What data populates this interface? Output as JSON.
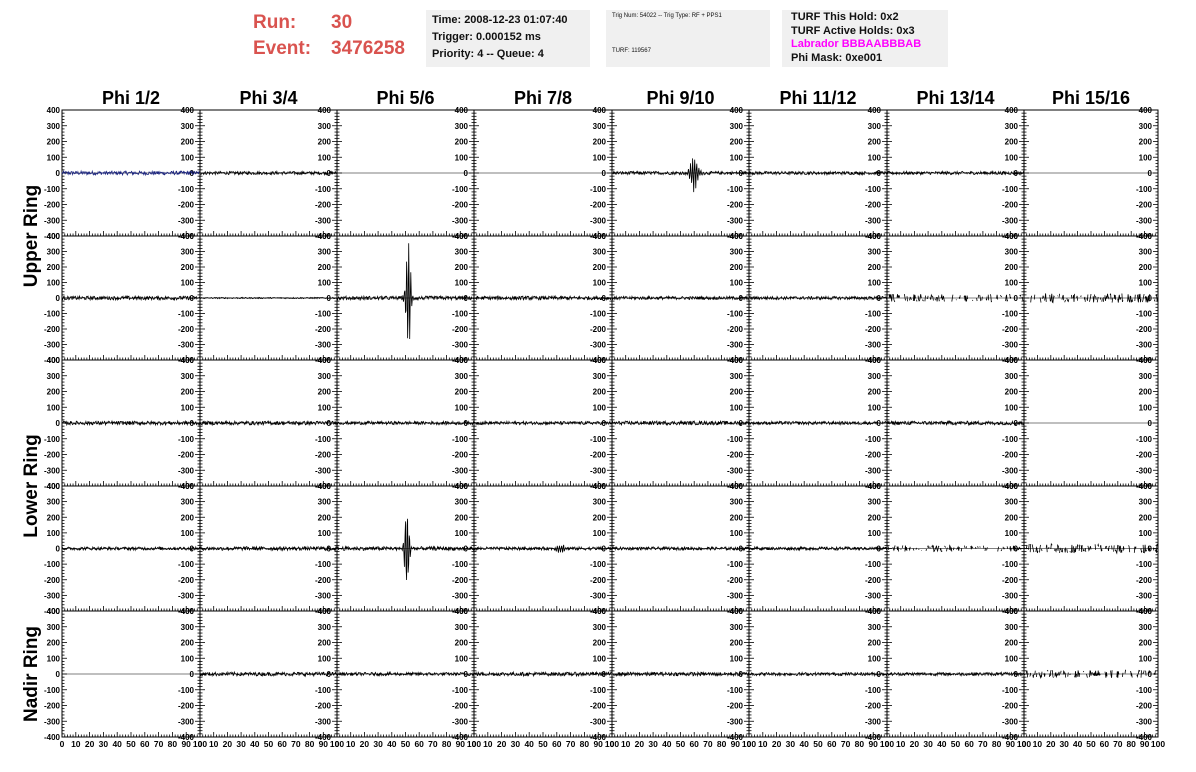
{
  "header": {
    "run_label": "Run:",
    "run_value": "30",
    "event_label": "Event:",
    "event_value": "3476258"
  },
  "info_time": {
    "time": "Time: 2008-12-23 01:07:40",
    "trigger": "Trigger: 0.000152 ms",
    "priority": "Priority: 4 -- Queue: 4"
  },
  "info_trig": {
    "trig_line": "Trig Num: 54022 -- Trig Type: RF + PPS1",
    "turf_line": "TURF: 119567"
  },
  "info_turf": {
    "hold": "TURF This Hold: 0x2",
    "active_holds": "TURF Active Holds: 0x3",
    "labrador": "Labrador BBBAABBBAB",
    "phi_mask": "Phi Mask: 0xe001"
  },
  "colors": {
    "header_red": "#d9534f",
    "magenta": "#ff00ff",
    "trace": "#000000",
    "trace_blue": "#1a237e",
    "panel_bg": "#f0f0f0"
  },
  "chart_data": {
    "type": "line",
    "columns": [
      "Phi 1/2",
      "Phi 3/4",
      "Phi 5/6",
      "Phi 7/8",
      "Phi 9/10",
      "Phi 11/12",
      "Phi 13/14",
      "Phi 15/16"
    ],
    "ring_labels": [
      "Upper Ring",
      "Lower Ring",
      "Nadir Ring"
    ],
    "ylim": [
      -400,
      400
    ],
    "xlim": [
      0,
      100
    ],
    "yticks": [
      "400",
      "300",
      "200",
      "100",
      "0",
      "-100",
      "-200",
      "-300",
      "-400"
    ],
    "xticks": [
      "0",
      "10",
      "20",
      "30",
      "40",
      "50",
      "60",
      "70",
      "80",
      "90",
      "100"
    ],
    "rows": [
      [
        {
          "kind": "noise",
          "amp": 12,
          "color": "blue"
        },
        {
          "kind": "noise",
          "amp": 10
        },
        {
          "kind": "flat"
        },
        {
          "kind": "flat"
        },
        {
          "kind": "pulse",
          "center": 60,
          "amp": 130,
          "noise": 10
        },
        {
          "kind": "noise",
          "amp": 10
        },
        {
          "kind": "noise",
          "amp": 10
        },
        {
          "kind": "flat"
        }
      ],
      [
        {
          "kind": "noise",
          "amp": 12
        },
        {
          "kind": "noise",
          "amp": 4
        },
        {
          "kind": "pulse",
          "center": 52,
          "amp": 400,
          "noise": 12
        },
        {
          "kind": "noise",
          "amp": 12
        },
        {
          "kind": "noise",
          "amp": 10
        },
        {
          "kind": "noise",
          "amp": 10
        },
        {
          "kind": "sparse",
          "amp": 25
        },
        {
          "kind": "sparse",
          "amp": 30
        }
      ],
      [
        {
          "kind": "noise",
          "amp": 12
        },
        {
          "kind": "noise",
          "amp": 12
        },
        {
          "kind": "noise",
          "amp": 10
        },
        {
          "kind": "noise",
          "amp": 10
        },
        {
          "kind": "noise",
          "amp": 12
        },
        {
          "kind": "noise",
          "amp": 10
        },
        {
          "kind": "noise",
          "amp": 12
        },
        {
          "kind": "flat"
        }
      ],
      [
        {
          "kind": "noise",
          "amp": 10
        },
        {
          "kind": "noise",
          "amp": 12
        },
        {
          "kind": "pulse",
          "center": 51,
          "amp": 300,
          "noise": 12
        },
        {
          "kind": "pulse",
          "center": 63,
          "amp": 30,
          "noise": 10
        },
        {
          "kind": "noise",
          "amp": 10
        },
        {
          "kind": "noise",
          "amp": 10
        },
        {
          "kind": "sparse",
          "amp": 20
        },
        {
          "kind": "sparse",
          "amp": 30
        }
      ],
      [
        {
          "kind": "flat"
        },
        {
          "kind": "noise",
          "amp": 12
        },
        {
          "kind": "noise",
          "amp": 10
        },
        {
          "kind": "noise",
          "amp": 12
        },
        {
          "kind": "noise",
          "amp": 12
        },
        {
          "kind": "noise",
          "amp": 10
        },
        {
          "kind": "noise",
          "amp": 10
        },
        {
          "kind": "sparse",
          "amp": 25
        }
      ]
    ]
  }
}
